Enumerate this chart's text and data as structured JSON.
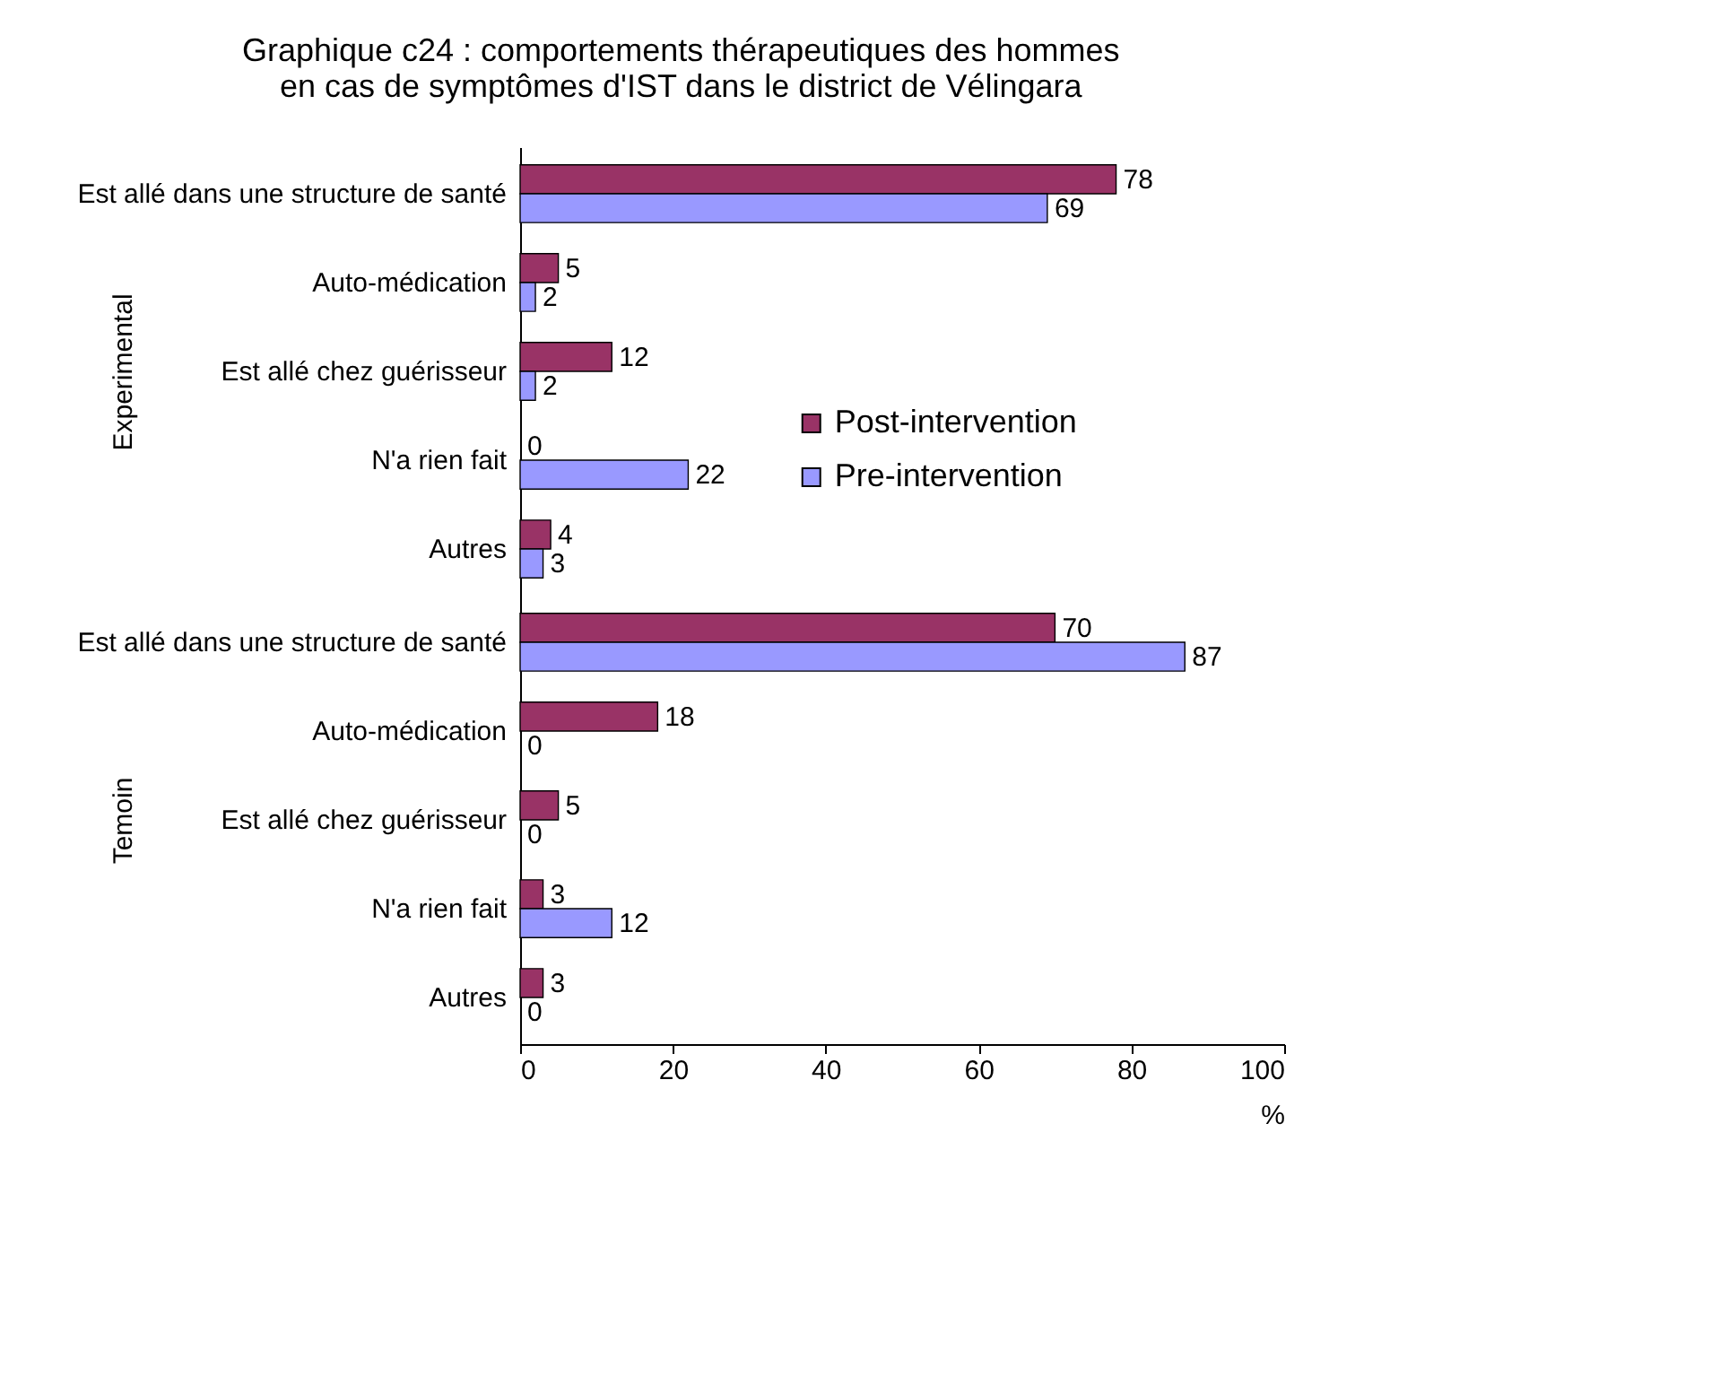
{
  "chart_data": [
    {
      "type": "bar",
      "orientation": "horizontal",
      "title": "Graphique c24 : comportements thérapeutiques des hommes\nen cas de symptômes d'IST dans le district de Vélingara",
      "ylabel": "Experimental",
      "categories": [
        "Est allé dans une structure de santé",
        "Auto-médication",
        "Est allé chez guérisseur",
        "N'a rien fait",
        "Autres"
      ],
      "series": [
        {
          "name": "Post-intervention",
          "color": "#993366",
          "values": [
            78,
            5,
            12,
            0,
            4
          ]
        },
        {
          "name": "Pre-intervention",
          "color": "#9999ff",
          "values": [
            69,
            2,
            2,
            22,
            3
          ]
        }
      ],
      "xlim": [
        0,
        100
      ],
      "xticks": [
        0,
        20,
        40,
        60,
        80,
        100
      ],
      "tick_labels": "y",
      "data_labels": true,
      "legend": "right"
    },
    {
      "type": "bar",
      "orientation": "horizontal",
      "ylabel": "Temoin",
      "xlabel": "%",
      "categories": [
        "Est allé dans une structure de santé",
        "Auto-médication",
        "Est allé chez guérisseur",
        "N'a rien fait",
        "Autres"
      ],
      "series": [
        {
          "name": "Post-intervention",
          "color": "#993366",
          "values": [
            70,
            18,
            5,
            3,
            3
          ]
        },
        {
          "name": "Pre-intervention",
          "color": "#9999ff",
          "values": [
            87,
            0,
            0,
            12,
            0
          ]
        }
      ],
      "xlim": [
        0,
        100
      ],
      "xticks": [
        0,
        20,
        40,
        60,
        80,
        100
      ],
      "data_labels": true
    }
  ]
}
